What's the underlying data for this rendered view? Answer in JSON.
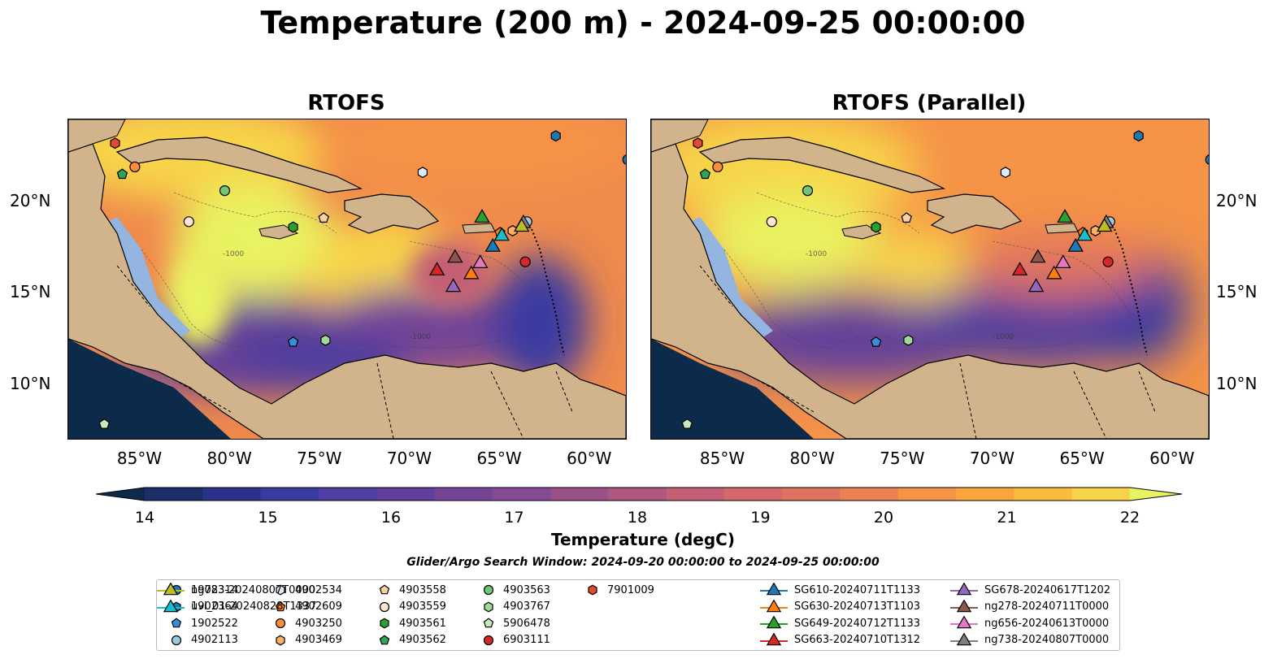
{
  "title": "Temperature (200 m) - 2024-09-25 00:00:00",
  "panels": [
    {
      "id": "rtofs",
      "title": "RTOFS"
    },
    {
      "id": "rtofs-parallel",
      "title": "RTOFS (Parallel)"
    }
  ],
  "lon_ticks": [
    "85°W",
    "80°W",
    "75°W",
    "70°W",
    "65°W",
    "60°W"
  ],
  "lat_ticks": [
    "20°N",
    "15°N",
    "10°N"
  ],
  "contour_label": "-1000",
  "colorbar": {
    "label": "Temperature (degC)",
    "ticks": [
      "14",
      "15",
      "16",
      "17",
      "18",
      "19",
      "20",
      "21",
      "22"
    ],
    "min": 14,
    "max": 22,
    "extend": "both",
    "colors": [
      "#0c2b4b",
      "#1b2f6b",
      "#2b3388",
      "#3b3aa0",
      "#4f3e9f",
      "#623f9a",
      "#744596",
      "#864a90",
      "#9a5188",
      "#ad587e",
      "#c25f74",
      "#d4686a",
      "#e1745f",
      "#ec8153",
      "#f59347",
      "#f9a63f",
      "#fbbd3d",
      "#f7d449",
      "#e9f260"
    ]
  },
  "search_window": "Glider/Argo Search Window: 2024-09-20 00:00:00 to 2024-09-25 00:00:00",
  "chart_data": {
    "type": "map",
    "variable": "Temperature (200 m)",
    "units": "degC",
    "extent": {
      "lon": [
        -89,
        -58
      ],
      "lat": [
        7,
        24.5
      ]
    },
    "observations": [
      {
        "id": "1902314",
        "kind": "argo",
        "marker": "circle",
        "color": "#1f77b4",
        "lon": -57.9,
        "lat": 22.3
      },
      {
        "id": "1902364",
        "kind": "argo",
        "marker": "hexagon",
        "color": "#1f77b4",
        "lon": -61.9,
        "lat": 23.6
      },
      {
        "id": "1902522",
        "kind": "argo",
        "marker": "pentagon",
        "color": "#3b8cd6",
        "lon": -76.5,
        "lat": 12.3
      },
      {
        "id": "4902113",
        "kind": "argo",
        "marker": "circle",
        "color": "#9ecae1",
        "lon": -63.5,
        "lat": 18.9
      },
      {
        "id": "4902534",
        "kind": "argo",
        "marker": "hexagon",
        "color": "#deebf7",
        "lon": -69.3,
        "lat": 21.6
      },
      {
        "id": "4902609",
        "kind": "argo",
        "marker": "pentagon",
        "color": "#fd7f0e",
        "lon": -65.0,
        "lat": 18.3
      },
      {
        "id": "4903250",
        "kind": "argo",
        "marker": "circle",
        "color": "#fd8d3c",
        "lon": -85.3,
        "lat": 21.9
      },
      {
        "id": "4903469",
        "kind": "argo",
        "marker": "hexagon",
        "color": "#fdae6b",
        "lon": -64.3,
        "lat": 18.4
      },
      {
        "id": "4903558",
        "kind": "argo",
        "marker": "pentagon",
        "color": "#fdd0a2",
        "lon": -74.8,
        "lat": 19.1
      },
      {
        "id": "4903559",
        "kind": "argo",
        "marker": "circle",
        "color": "#fee6ce",
        "lon": -82.3,
        "lat": 18.9
      },
      {
        "id": "4903561",
        "kind": "argo",
        "marker": "hexagon",
        "color": "#2ca02c",
        "lon": -76.5,
        "lat": 18.6
      },
      {
        "id": "4903562",
        "kind": "argo",
        "marker": "pentagon",
        "color": "#31a354",
        "lon": -86.0,
        "lat": 21.5
      },
      {
        "id": "4903563",
        "kind": "argo",
        "marker": "circle",
        "color": "#74c476",
        "lon": -80.3,
        "lat": 20.6
      },
      {
        "id": "4903767",
        "kind": "argo",
        "marker": "hexagon",
        "color": "#a1d99b",
        "lon": -74.7,
        "lat": 12.4
      },
      {
        "id": "5906478",
        "kind": "argo",
        "marker": "pentagon",
        "color": "#c7e9c0",
        "lon": -87.0,
        "lat": 7.8
      },
      {
        "id": "6903111",
        "kind": "argo",
        "marker": "circle",
        "color": "#d62728",
        "lon": -63.6,
        "lat": 16.7
      },
      {
        "id": "7901009",
        "kind": "argo",
        "marker": "hexagon",
        "color": "#e34a33",
        "lon": -86.4,
        "lat": 23.2
      },
      {
        "id": "SG610-20240711T1133",
        "kind": "glider",
        "marker": "triangle",
        "color": "#1f77b4",
        "lon": -65.4,
        "lat": 17.5
      },
      {
        "id": "SG630-20240713T1103",
        "kind": "glider",
        "marker": "triangle",
        "color": "#ff7f0e",
        "lon": -66.6,
        "lat": 16.0
      },
      {
        "id": "SG649-20240712T1133",
        "kind": "glider",
        "marker": "triangle",
        "color": "#2ca02c",
        "lon": -66.0,
        "lat": 19.1
      },
      {
        "id": "SG663-20240710T1312",
        "kind": "glider",
        "marker": "triangle",
        "color": "#d62728",
        "lon": -68.5,
        "lat": 16.2
      },
      {
        "id": "SG678-20240617T1202",
        "kind": "glider",
        "marker": "triangle",
        "color": "#9467bd",
        "lon": -67.6,
        "lat": 15.3
      },
      {
        "id": "ng278-20240711T0000",
        "kind": "glider",
        "marker": "triangle",
        "color": "#8c564b",
        "lon": -67.5,
        "lat": 16.9
      },
      {
        "id": "ng656-20240613T0000",
        "kind": "glider",
        "marker": "triangle",
        "color": "#e377c2",
        "lon": -66.1,
        "lat": 16.6
      },
      {
        "id": "ng738-20240807T0000",
        "kind": "glider",
        "marker": "triangle",
        "color": "#7f7f7f",
        "lon": -63.7,
        "lat": 18.8
      },
      {
        "id": "ng783-20240807T0000",
        "kind": "glider",
        "marker": "triangle",
        "color": "#bcbd22",
        "lon": -63.8,
        "lat": 18.6
      },
      {
        "id": "uvi_01-20240828T1337",
        "kind": "glider",
        "marker": "triangle",
        "color": "#17becf",
        "lon": -64.9,
        "lat": 18.1
      }
    ]
  }
}
